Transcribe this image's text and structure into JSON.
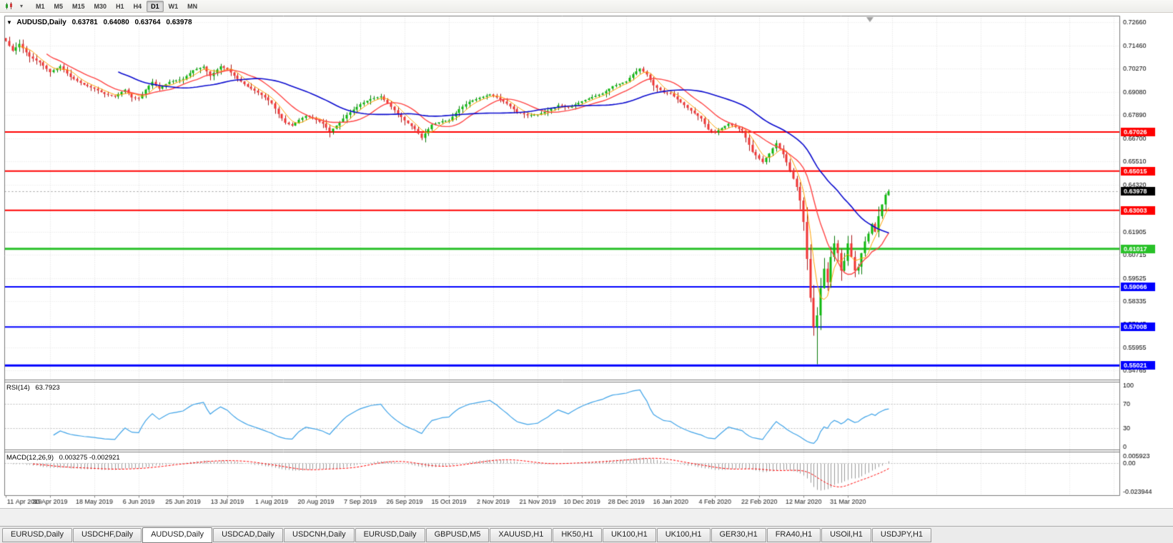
{
  "toolbar": {
    "timeframes": [
      {
        "label": "M1",
        "active": false
      },
      {
        "label": "M5",
        "active": false
      },
      {
        "label": "M15",
        "active": false
      },
      {
        "label": "M30",
        "active": false
      },
      {
        "label": "H1",
        "active": false
      },
      {
        "label": "H4",
        "active": false
      },
      {
        "label": "D1",
        "active": true
      },
      {
        "label": "W1",
        "active": false
      },
      {
        "label": "MN",
        "active": false
      }
    ]
  },
  "chart": {
    "expand_icon": "▼",
    "symbol": "AUDUSD,Daily",
    "open": "0.63781",
    "high": "0.64080",
    "low": "0.63764",
    "close": "0.63978"
  },
  "rsi_panel": {
    "name": "RSI(14)",
    "value": "63.7923"
  },
  "macd_panel": {
    "name": "MACD(12,26,9)",
    "value": "0.003275 -0.002921"
  },
  "tabs": [
    {
      "label": "EURUSD,Daily",
      "active": false
    },
    {
      "label": "USDCHF,Daily",
      "active": false
    },
    {
      "label": "AUDUSD,Daily",
      "active": true
    },
    {
      "label": "USDCAD,Daily",
      "active": false
    },
    {
      "label": "USDCNH,Daily",
      "active": false
    },
    {
      "label": "EURUSD,Daily",
      "active": false
    },
    {
      "label": "GBPUSD,M5",
      "active": false
    },
    {
      "label": "XAUUSD,H1",
      "active": false
    },
    {
      "label": "HK50,H1",
      "active": false
    },
    {
      "label": "UK100,H1",
      "active": false
    },
    {
      "label": "UK100,H1",
      "active": false
    },
    {
      "label": "GER30,H1",
      "active": false
    },
    {
      "label": "FRA40,H1",
      "active": false
    },
    {
      "label": "USOil,H1",
      "active": false
    },
    {
      "label": "USDJPY,H1",
      "active": false
    }
  ],
  "chart_data": {
    "type": "candlestick",
    "symbol": "AUDUSD",
    "timeframe": "Daily",
    "num_candles": 260,
    "x_tick_step": 13,
    "x_tick_labels": [
      "11 Apr 2019",
      "30 Apr 2019",
      "18 May 2019",
      "6 Jun 2019",
      "25 Jun 2019",
      "13 Jul 2019",
      "1 Aug 2019",
      "20 Aug 2019",
      "7 Sep 2019",
      "26 Sep 2019",
      "15 Oct 2019",
      "2 Nov 2019",
      "21 Nov 2019",
      "10 Dec 2019",
      "28 Dec 2019",
      "16 Jan 2020",
      "4 Feb 2020",
      "22 Feb 2020",
      "12 Mar 2020",
      "31 Mar 2020"
    ],
    "y_axis_labels": [
      "0.72660",
      "0.71460",
      "0.70270",
      "0.69080",
      "0.67890",
      "0.66700",
      "0.65510",
      "0.64320",
      "0.61905",
      "0.60715",
      "0.59525",
      "0.58335",
      "0.57145",
      "0.55955",
      "0.54765"
    ],
    "price_range": [
      0.543,
      0.73
    ],
    "current_price": 0.63978,
    "current_price_label": "0.63978",
    "current_price_tag_color": "#000000",
    "levels": [
      {
        "value": 0.67026,
        "label": "0.67026",
        "color": "#ff0000",
        "width": 2
      },
      {
        "value": 0.65015,
        "label": "0.65015",
        "color": "#ff0000",
        "width": 2
      },
      {
        "value": 0.63003,
        "label": "0.63003",
        "color": "#ff0000",
        "width": 2
      },
      {
        "value": 0.61017,
        "label": "0.61017",
        "color": "#28c128",
        "width": 3
      },
      {
        "value": 0.59066,
        "label": "0.59066",
        "color": "#0000ff",
        "width": 2
      },
      {
        "value": 0.57008,
        "label": "0.57008",
        "color": "#0000ff",
        "width": 2
      },
      {
        "value": 0.55021,
        "label": "0.55021",
        "color": "#0000ff",
        "width": 3
      }
    ],
    "close_anchors": [
      [
        0,
        0.717
      ],
      [
        2,
        0.712
      ],
      [
        4,
        0.7155
      ],
      [
        7,
        0.709
      ],
      [
        10,
        0.706
      ],
      [
        13,
        0.701
      ],
      [
        16,
        0.704
      ],
      [
        19,
        0.6985
      ],
      [
        23,
        0.6945
      ],
      [
        26,
        0.6925
      ],
      [
        29,
        0.6898
      ],
      [
        32,
        0.6885
      ],
      [
        35,
        0.692
      ],
      [
        37,
        0.688
      ],
      [
        39,
        0.6875
      ],
      [
        41,
        0.692
      ],
      [
        43,
        0.696
      ],
      [
        45,
        0.6925
      ],
      [
        48,
        0.696
      ],
      [
        52,
        0.6975
      ],
      [
        55,
        0.702
      ],
      [
        58,
        0.7038
      ],
      [
        60,
        0.699
      ],
      [
        63,
        0.704
      ],
      [
        65,
        0.7025
      ],
      [
        68,
        0.6975
      ],
      [
        71,
        0.6935
      ],
      [
        74,
        0.6905
      ],
      [
        76,
        0.688
      ],
      [
        78,
        0.685
      ],
      [
        80,
        0.6795
      ],
      [
        82,
        0.675
      ],
      [
        84,
        0.6735
      ],
      [
        86,
        0.6765
      ],
      [
        88,
        0.6785
      ],
      [
        91,
        0.6765
      ],
      [
        93,
        0.6745
      ],
      [
        95,
        0.6705
      ],
      [
        97,
        0.6735
      ],
      [
        100,
        0.679
      ],
      [
        104,
        0.6845
      ],
      [
        107,
        0.6872
      ],
      [
        110,
        0.6885
      ],
      [
        113,
        0.6832
      ],
      [
        117,
        0.6762
      ],
      [
        120,
        0.6718
      ],
      [
        122,
        0.6672
      ],
      [
        125,
        0.674
      ],
      [
        128,
        0.6758
      ],
      [
        130,
        0.6762
      ],
      [
        133,
        0.682
      ],
      [
        136,
        0.6858
      ],
      [
        139,
        0.6878
      ],
      [
        142,
        0.6895
      ],
      [
        144,
        0.688
      ],
      [
        147,
        0.6848
      ],
      [
        150,
        0.6805
      ],
      [
        153,
        0.6788
      ],
      [
        156,
        0.6792
      ],
      [
        159,
        0.6812
      ],
      [
        162,
        0.684
      ],
      [
        165,
        0.6828
      ],
      [
        169,
        0.686
      ],
      [
        172,
        0.6882
      ],
      [
        175,
        0.69
      ],
      [
        178,
        0.6938
      ],
      [
        182,
        0.6962
      ],
      [
        184,
        0.7
      ],
      [
        186,
        0.7028
      ],
      [
        188,
        0.6998
      ],
      [
        190,
        0.6942
      ],
      [
        193,
        0.6905
      ],
      [
        195,
        0.69
      ],
      [
        198,
        0.6855
      ],
      [
        201,
        0.6812
      ],
      [
        204,
        0.6772
      ],
      [
        206,
        0.6715
      ],
      [
        208,
        0.67
      ],
      [
        212,
        0.6745
      ],
      [
        216,
        0.671
      ],
      [
        219,
        0.66
      ],
      [
        222,
        0.6548
      ],
      [
        224,
        0.6592
      ],
      [
        226,
        0.6645
      ],
      [
        228,
        0.6588
      ],
      [
        230,
        0.6505
      ],
      [
        232,
        0.642
      ],
      [
        233,
        0.635
      ],
      [
        234,
        0.624
      ],
      [
        235,
        0.605
      ],
      [
        236,
        0.585
      ],
      [
        237,
        0.57
      ],
      [
        238,
        0.576
      ],
      [
        239,
        0.59
      ],
      [
        240,
        0.6
      ],
      [
        241,
        0.593
      ],
      [
        242,
        0.606
      ],
      [
        243,
        0.613
      ],
      [
        244,
        0.608
      ],
      [
        245,
        0.599
      ],
      [
        246,
        0.604
      ],
      [
        247,
        0.613
      ],
      [
        248,
        0.606
      ],
      [
        249,
        0.599
      ],
      [
        250,
        0.601
      ],
      [
        251,
        0.608
      ],
      [
        252,
        0.614
      ],
      [
        253,
        0.618
      ],
      [
        254,
        0.623
      ],
      [
        255,
        0.619
      ],
      [
        256,
        0.627
      ],
      [
        257,
        0.633
      ],
      [
        258,
        0.638
      ],
      [
        259,
        0.63978
      ]
    ],
    "last_candle": {
      "open": 0.63781,
      "high": 0.6408,
      "low": 0.63764,
      "close": 0.63978
    },
    "spike": {
      "index": 238,
      "low": 0.551
    },
    "candle_colors": {
      "up": "#0db80d",
      "up_border": "#067806",
      "down": "#ef3434",
      "down_border": "#a91414"
    },
    "moving_averages": [
      {
        "period": 5,
        "color": "#ffa200",
        "width": 1
      },
      {
        "period": 13,
        "color": "#ff4545",
        "width": 1.4
      },
      {
        "period": 34,
        "color": "#0b0bcf",
        "width": 1.6
      }
    ],
    "rsi": {
      "period": 14,
      "color": "#3fa3e8",
      "range": [
        0,
        100
      ],
      "levels": [
        70,
        30
      ],
      "axis_labels": [
        {
          "value": 100,
          "label": "100"
        },
        {
          "value": 70,
          "label": "70"
        },
        {
          "value": 30,
          "label": "30"
        },
        {
          "value": 0,
          "label": "0"
        }
      ]
    },
    "macd": {
      "fast": 12,
      "slow": 26,
      "signal": 9,
      "histogram_color": "#9a9a9a",
      "signal_color": "#ff0000",
      "range": [
        -0.0245,
        0.0065
      ],
      "axis_labels": [
        {
          "value": 0.005923,
          "label": "0.005923"
        },
        {
          "value": 0,
          "label": "0.00"
        },
        {
          "value": -0.023944,
          "label": "-0.023944"
        }
      ]
    }
  }
}
